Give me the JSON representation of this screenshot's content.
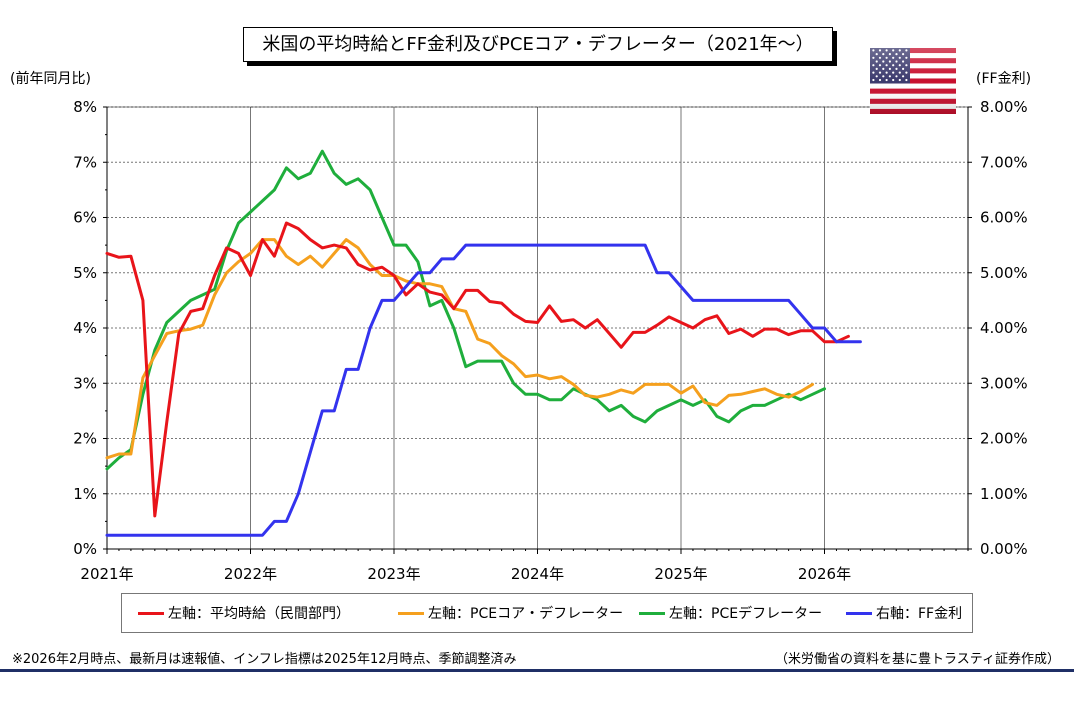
{
  "title": "米国の平均時給とFF金利及びPCEコア・デフレーター（2021年～）",
  "left_axis_unit": "(前年同月比)",
  "right_axis_unit": "(FF金利)",
  "flag_icon": "us-flag",
  "notes": {
    "left": "※2026年2月時点、最新月は速報値、インフレ指標は2025年12月時点、季節調整済み",
    "right": "（米労働省の資料を基に豊トラスティ証券作成）"
  },
  "colors": {
    "wage": "#e8141a",
    "pce_core": "#f5a01e",
    "pce": "#1fae3c",
    "ff_rate": "#3333ee",
    "grid": "#777777"
  },
  "chart_data": {
    "type": "line",
    "title": "米国の平均時給とFF金利及びPCEコア・デフレーター（2021年～）",
    "x_start": "2021-01",
    "x_ticks": [
      "2021年",
      "2022年",
      "2023年",
      "2024年",
      "2025年",
      "2026年"
    ],
    "x_range": [
      "2021-01",
      "2027-01"
    ],
    "left_axis": {
      "label": "(前年同月比)",
      "ylim": [
        0,
        8
      ],
      "ticks": [
        "0%",
        "1%",
        "2%",
        "3%",
        "4%",
        "5%",
        "6%",
        "7%",
        "8%"
      ]
    },
    "right_axis": {
      "label": "(FF金利)",
      "ylim": [
        0,
        8
      ],
      "ticks": [
        "0.00%",
        "1.00%",
        "2.00%",
        "3.00%",
        "4.00%",
        "5.00%",
        "6.00%",
        "7.00%",
        "8.00%"
      ]
    },
    "grid": true,
    "legend_position": "bottom",
    "series": [
      {
        "name": "左軸：平均時給（民間部門）",
        "axis": "left",
        "color": "#e8141a",
        "values": [
          5.35,
          5.28,
          5.3,
          4.5,
          0.6,
          2.3,
          3.9,
          4.3,
          4.35,
          4.95,
          5.45,
          5.35,
          4.95,
          5.6,
          5.3,
          5.9,
          5.8,
          5.6,
          5.45,
          5.5,
          5.45,
          5.15,
          5.05,
          5.1,
          4.95,
          4.6,
          4.8,
          4.65,
          4.6,
          4.35,
          4.68,
          4.68,
          4.48,
          4.45,
          4.25,
          4.12,
          4.1,
          4.4,
          4.12,
          4.15,
          4.0,
          4.15,
          3.9,
          3.65,
          3.92,
          3.92,
          4.05,
          4.2,
          4.1,
          4.0,
          4.15,
          4.22,
          3.9,
          3.98,
          3.85,
          3.98,
          3.98,
          3.88,
          3.95,
          3.95,
          3.75,
          3.75,
          3.85
        ]
      },
      {
        "name": "左軸：PCEコア・デフレーター",
        "axis": "left",
        "color": "#f5a01e",
        "values": [
          1.65,
          1.72,
          1.72,
          3.1,
          3.5,
          3.9,
          3.95,
          3.98,
          4.05,
          4.6,
          5.0,
          5.2,
          5.35,
          5.6,
          5.6,
          5.3,
          5.15,
          5.3,
          5.1,
          5.35,
          5.6,
          5.45,
          5.15,
          4.95,
          4.95,
          4.85,
          4.8,
          4.8,
          4.75,
          4.35,
          4.3,
          3.8,
          3.72,
          3.5,
          3.35,
          3.12,
          3.15,
          3.08,
          3.12,
          2.98,
          2.78,
          2.75,
          2.8,
          2.88,
          2.82,
          2.98,
          2.98,
          2.98,
          2.82,
          2.95,
          2.65,
          2.6,
          2.78,
          2.8,
          2.85,
          2.9,
          2.8,
          2.75,
          2.85,
          2.98
        ]
      },
      {
        "name": "左軸：PCEデフレーター",
        "axis": "left",
        "color": "#1fae3c",
        "values": [
          1.45,
          1.65,
          1.8,
          2.8,
          3.6,
          4.1,
          4.3,
          4.5,
          4.6,
          4.7,
          5.4,
          5.9,
          6.1,
          6.3,
          6.5,
          6.9,
          6.7,
          6.8,
          7.2,
          6.8,
          6.6,
          6.7,
          6.5,
          6.0,
          5.5,
          5.5,
          5.2,
          4.4,
          4.5,
          4.0,
          3.3,
          3.4,
          3.4,
          3.4,
          3.0,
          2.8,
          2.8,
          2.7,
          2.7,
          2.9,
          2.8,
          2.7,
          2.5,
          2.6,
          2.4,
          2.3,
          2.5,
          2.6,
          2.7,
          2.6,
          2.7,
          2.4,
          2.3,
          2.5,
          2.6,
          2.6,
          2.7,
          2.8,
          2.7,
          2.8,
          2.9
        ]
      },
      {
        "name": "右軸：FF金利",
        "axis": "right",
        "color": "#3333ee",
        "values": [
          0.25,
          0.25,
          0.25,
          0.25,
          0.25,
          0.25,
          0.25,
          0.25,
          0.25,
          0.25,
          0.25,
          0.25,
          0.25,
          0.25,
          0.5,
          0.5,
          1.0,
          1.75,
          2.5,
          2.5,
          3.25,
          3.25,
          4.0,
          4.5,
          4.5,
          4.75,
          5.0,
          5.0,
          5.25,
          5.25,
          5.5,
          5.5,
          5.5,
          5.5,
          5.5,
          5.5,
          5.5,
          5.5,
          5.5,
          5.5,
          5.5,
          5.5,
          5.5,
          5.5,
          5.5,
          5.5,
          5.0,
          5.0,
          4.75,
          4.5,
          4.5,
          4.5,
          4.5,
          4.5,
          4.5,
          4.5,
          4.5,
          4.5,
          4.25,
          4.0,
          4.0,
          3.75,
          3.75,
          3.75
        ]
      }
    ]
  }
}
